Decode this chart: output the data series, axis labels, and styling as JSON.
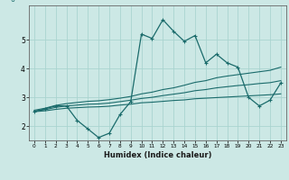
{
  "xlabel": "Humidex (Indice chaleur)",
  "bg_color": "#cce8e5",
  "grid_color": "#aad4d0",
  "line_color": "#1a6b6b",
  "x_data": [
    0,
    1,
    2,
    3,
    4,
    5,
    6,
    7,
    8,
    9,
    10,
    11,
    12,
    13,
    14,
    15,
    16,
    17,
    18,
    19,
    20,
    21,
    22,
    23
  ],
  "y_main": [
    2.5,
    2.6,
    2.7,
    2.7,
    2.2,
    1.9,
    1.6,
    1.75,
    2.4,
    2.85,
    5.2,
    5.05,
    5.7,
    5.3,
    4.95,
    5.15,
    4.2,
    4.5,
    4.2,
    4.05,
    3.0,
    2.7,
    2.9,
    3.5
  ],
  "y_upper": [
    2.55,
    2.62,
    2.72,
    2.78,
    2.82,
    2.86,
    2.88,
    2.92,
    2.97,
    3.03,
    3.12,
    3.18,
    3.27,
    3.33,
    3.42,
    3.52,
    3.58,
    3.68,
    3.74,
    3.79,
    3.84,
    3.89,
    3.94,
    4.05
  ],
  "y_lower": [
    2.5,
    2.53,
    2.58,
    2.62,
    2.64,
    2.66,
    2.67,
    2.69,
    2.73,
    2.76,
    2.81,
    2.83,
    2.86,
    2.89,
    2.91,
    2.95,
    2.97,
    2.99,
    3.01,
    3.03,
    3.05,
    3.07,
    3.09,
    3.12
  ],
  "y_mid": [
    2.52,
    2.57,
    2.65,
    2.7,
    2.73,
    2.76,
    2.77,
    2.8,
    2.85,
    2.9,
    2.96,
    3.0,
    3.06,
    3.11,
    3.16,
    3.23,
    3.27,
    3.33,
    3.37,
    3.41,
    3.44,
    3.48,
    3.51,
    3.58
  ],
  "ylim": [
    1.5,
    6.2
  ],
  "xlim": [
    -0.5,
    23.5
  ],
  "yticks": [
    2,
    3,
    4,
    5
  ],
  "xticks": [
    0,
    1,
    2,
    3,
    4,
    5,
    6,
    7,
    8,
    9,
    10,
    11,
    12,
    13,
    14,
    15,
    16,
    17,
    18,
    19,
    20,
    21,
    22,
    23
  ]
}
